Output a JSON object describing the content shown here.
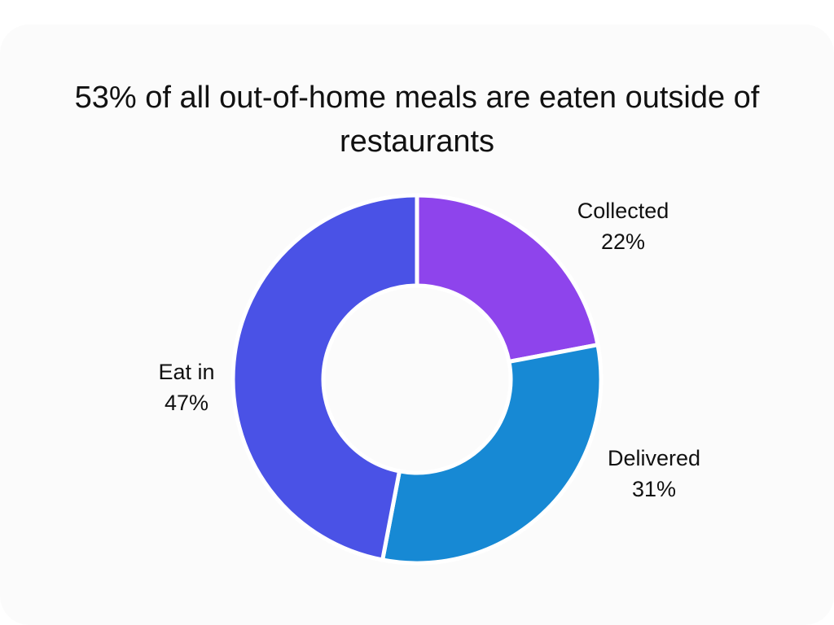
{
  "chart_data": {
    "type": "pie",
    "title": "53% of all out-of-home meals are eaten outside of restaurants",
    "slices": [
      {
        "label": "Collected",
        "value": 22,
        "value_label": "22%",
        "color": "#8e44ec"
      },
      {
        "label": "Delivered",
        "value": 31,
        "value_label": "31%",
        "color": "#1789d4"
      },
      {
        "label": "Eat in",
        "value": 47,
        "value_label": "47%",
        "color": "#4a52e6"
      }
    ],
    "donut": true,
    "start": "top",
    "direction": "clockwise",
    "legend": "none"
  }
}
